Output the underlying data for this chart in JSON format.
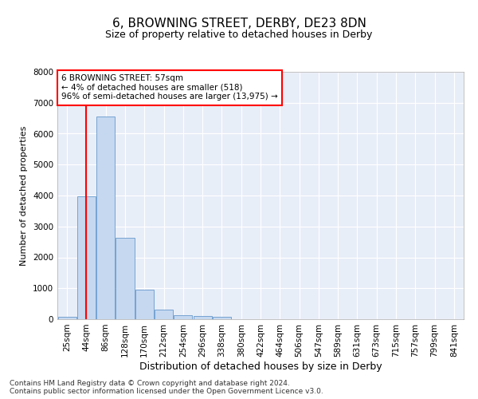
{
  "title": "6, BROWNING STREET, DERBY, DE23 8DN",
  "subtitle": "Size of property relative to detached houses in Derby",
  "xlabel": "Distribution of detached houses by size in Derby",
  "ylabel": "Number of detached properties",
  "footer_line1": "Contains HM Land Registry data © Crown copyright and database right 2024.",
  "footer_line2": "Contains public sector information licensed under the Open Government Licence v3.0.",
  "categories": [
    "25sqm",
    "44sqm",
    "86sqm",
    "128sqm",
    "170sqm",
    "212sqm",
    "254sqm",
    "296sqm",
    "338sqm",
    "380sqm",
    "422sqm",
    "464sqm",
    "506sqm",
    "547sqm",
    "589sqm",
    "631sqm",
    "673sqm",
    "715sqm",
    "757sqm",
    "799sqm",
    "841sqm"
  ],
  "bar_values": [
    75,
    3980,
    6560,
    2620,
    950,
    305,
    140,
    105,
    85,
    0,
    0,
    0,
    0,
    0,
    0,
    0,
    0,
    0,
    0,
    0,
    0
  ],
  "bar_color": "#c5d8f0",
  "bar_edge_color": "#6699cc",
  "property_line_x": 0.97,
  "annotation_text": "6 BROWNING STREET: 57sqm\n← 4% of detached houses are smaller (518)\n96% of semi-detached houses are larger (13,975) →",
  "annotation_box_color": "white",
  "annotation_box_edge_color": "red",
  "vline_color": "red",
  "ylim": [
    0,
    8000
  ],
  "background_color": "#e8eef8",
  "grid_color": "white",
  "title_fontsize": 11,
  "subtitle_fontsize": 9,
  "xlabel_fontsize": 9,
  "ylabel_fontsize": 8,
  "tick_fontsize": 7.5,
  "annotation_fontsize": 7.5,
  "footer_fontsize": 6.5
}
